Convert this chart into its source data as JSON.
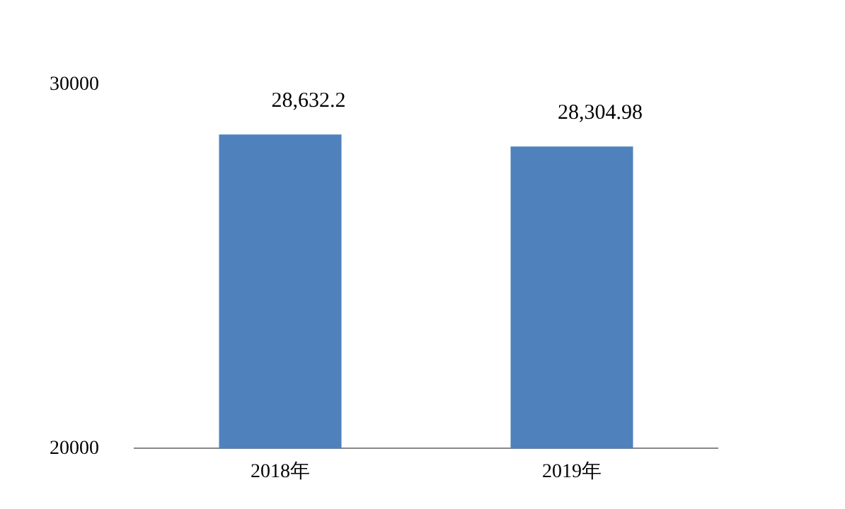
{
  "chart_data": {
    "type": "bar",
    "categories": [
      "2018年",
      "2019年"
    ],
    "values": [
      28632.2,
      28304.98
    ],
    "color": "#4f81bd",
    "value_labels": [
      "28,632.2",
      "28,304.98"
    ],
    "ylim": [
      20000,
      30000
    ],
    "yticks": [
      20000,
      30000
    ],
    "grid": false,
    "legend": false
  }
}
